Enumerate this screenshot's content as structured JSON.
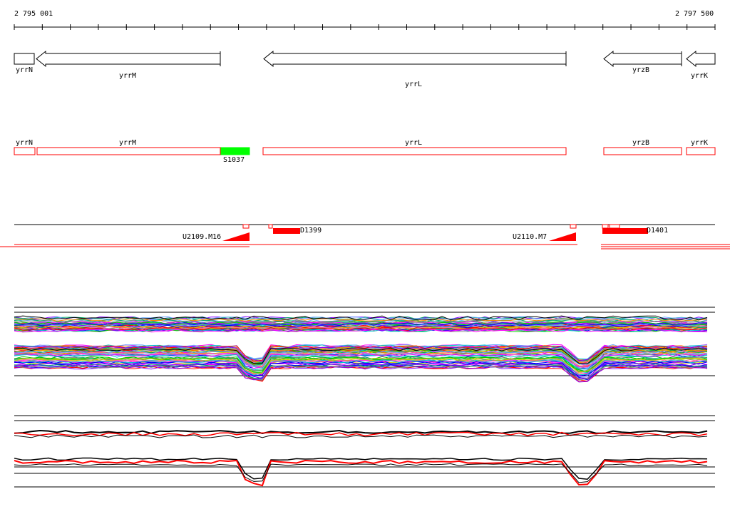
{
  "ruler": {
    "start_label": "2 795 001",
    "end_label": "2 797 500"
  },
  "genes": [
    {
      "name": "yrrN",
      "strand": "-"
    },
    {
      "name": "yrrM",
      "strand": "-"
    },
    {
      "name": "yrrL",
      "strand": "-"
    },
    {
      "name": "yrzB",
      "strand": "-"
    },
    {
      "name": "yrrK",
      "strand": "-"
    }
  ],
  "annotation_track": {
    "boxes": [
      "yrrN",
      "yrrM",
      "yrrL",
      "yrzB",
      "yrrK"
    ],
    "highlight_label": "S1037",
    "box_color": "#ff0000",
    "highlight_color": "#00ff00"
  },
  "transcript_track": {
    "labels": [
      "U2109.M16",
      "D1399",
      "U2110.M7",
      "D1401"
    ],
    "color": "#ff0000"
  },
  "colors": {
    "line_default": "#000000",
    "feature_outline": "#ff0000",
    "expression_palette": [
      "#ff0000",
      "#00cc00",
      "#0000ff",
      "#ff00ff",
      "#00cccc",
      "#cccc00",
      "#ff8800",
      "#8800ff",
      "#00aa66",
      "#888888",
      "#ff66aa",
      "#66aaff"
    ]
  }
}
